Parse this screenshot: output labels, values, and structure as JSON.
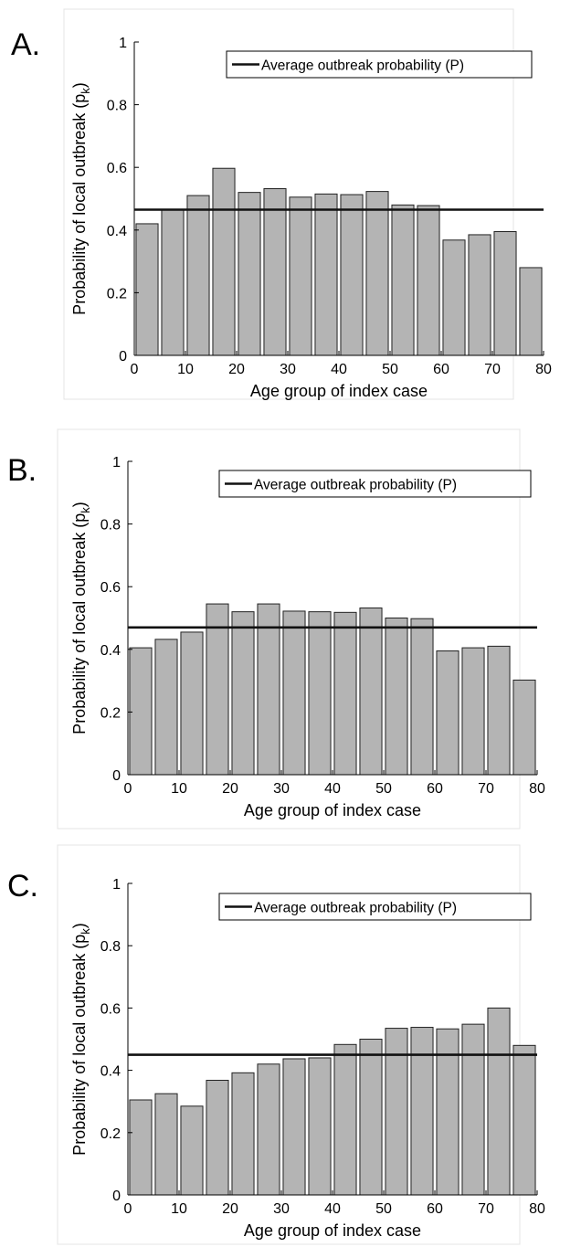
{
  "colors": {
    "bar_fill": "#b4b4b4",
    "bar_edge": "#222222",
    "line": "#111111"
  },
  "chart_data": [
    {
      "type": "bar",
      "panel_label": "A.",
      "x": [
        2.5,
        7.5,
        12.5,
        17.5,
        22.5,
        27.5,
        32.5,
        37.5,
        42.5,
        47.5,
        52.5,
        57.5,
        62.5,
        67.5,
        72.5,
        77.5
      ],
      "values": [
        0.42,
        0.465,
        0.51,
        0.597,
        0.52,
        0.532,
        0.505,
        0.515,
        0.513,
        0.523,
        0.48,
        0.478,
        0.368,
        0.385,
        0.395,
        0.28
      ],
      "average_line": 0.465,
      "legend": {
        "label": "Average outbreak probability (P)",
        "position": "top-right"
      },
      "xlabel": "Age group of index case",
      "ylabel": "Probability of local outbreak (p",
      "ylabel_sub": "k",
      "ylabel_close": ")",
      "xlim": [
        0,
        80
      ],
      "ylim": [
        0,
        1
      ],
      "xticks": [
        0,
        10,
        20,
        30,
        40,
        50,
        60,
        70,
        80
      ],
      "yticks": [
        0,
        0.2,
        0.4,
        0.6,
        0.8,
        1
      ],
      "ytick_labels": [
        "0",
        "0.2",
        "0.4",
        "0.6",
        "0.8",
        "1"
      ],
      "grid": false
    },
    {
      "type": "bar",
      "panel_label": "B.",
      "x": [
        2.5,
        7.5,
        12.5,
        17.5,
        22.5,
        27.5,
        32.5,
        37.5,
        42.5,
        47.5,
        52.5,
        57.5,
        62.5,
        67.5,
        72.5,
        77.5
      ],
      "values": [
        0.405,
        0.432,
        0.455,
        0.545,
        0.52,
        0.545,
        0.522,
        0.52,
        0.518,
        0.532,
        0.5,
        0.498,
        0.395,
        0.405,
        0.41,
        0.302
      ],
      "average_line": 0.47,
      "legend": {
        "label": "Average outbreak probability (P)",
        "position": "top-right"
      },
      "xlabel": "Age group of index case",
      "ylabel": "Probability of local outbreak (p",
      "ylabel_sub": "k",
      "ylabel_close": ")",
      "xlim": [
        0,
        80
      ],
      "ylim": [
        0,
        1
      ],
      "xticks": [
        0,
        10,
        20,
        30,
        40,
        50,
        60,
        70,
        80
      ],
      "yticks": [
        0,
        0.2,
        0.4,
        0.6,
        0.8,
        1
      ],
      "ytick_labels": [
        "0",
        "0.2",
        "0.4",
        "0.6",
        "0.8",
        "1"
      ],
      "grid": false
    },
    {
      "type": "bar",
      "panel_label": "C.",
      "x": [
        2.5,
        7.5,
        12.5,
        17.5,
        22.5,
        27.5,
        32.5,
        37.5,
        42.5,
        47.5,
        52.5,
        57.5,
        62.5,
        67.5,
        72.5,
        77.5
      ],
      "values": [
        0.305,
        0.325,
        0.285,
        0.368,
        0.392,
        0.42,
        0.437,
        0.44,
        0.483,
        0.5,
        0.535,
        0.538,
        0.533,
        0.548,
        0.6,
        0.48
      ],
      "average_line": 0.45,
      "legend": {
        "label": "Average outbreak probability (P)",
        "position": "top-right"
      },
      "xlabel": "Age group of index case",
      "ylabel": "Probability of local outbreak (p",
      "ylabel_sub": "k",
      "ylabel_close": ")",
      "xlim": [
        0,
        80
      ],
      "ylim": [
        0,
        1
      ],
      "xticks": [
        0,
        10,
        20,
        30,
        40,
        50,
        60,
        70,
        80
      ],
      "yticks": [
        0,
        0.2,
        0.4,
        0.6,
        0.8,
        1
      ],
      "ytick_labels": [
        "0",
        "0.2",
        "0.4",
        "0.6",
        "0.8",
        "1"
      ],
      "grid": false
    }
  ]
}
